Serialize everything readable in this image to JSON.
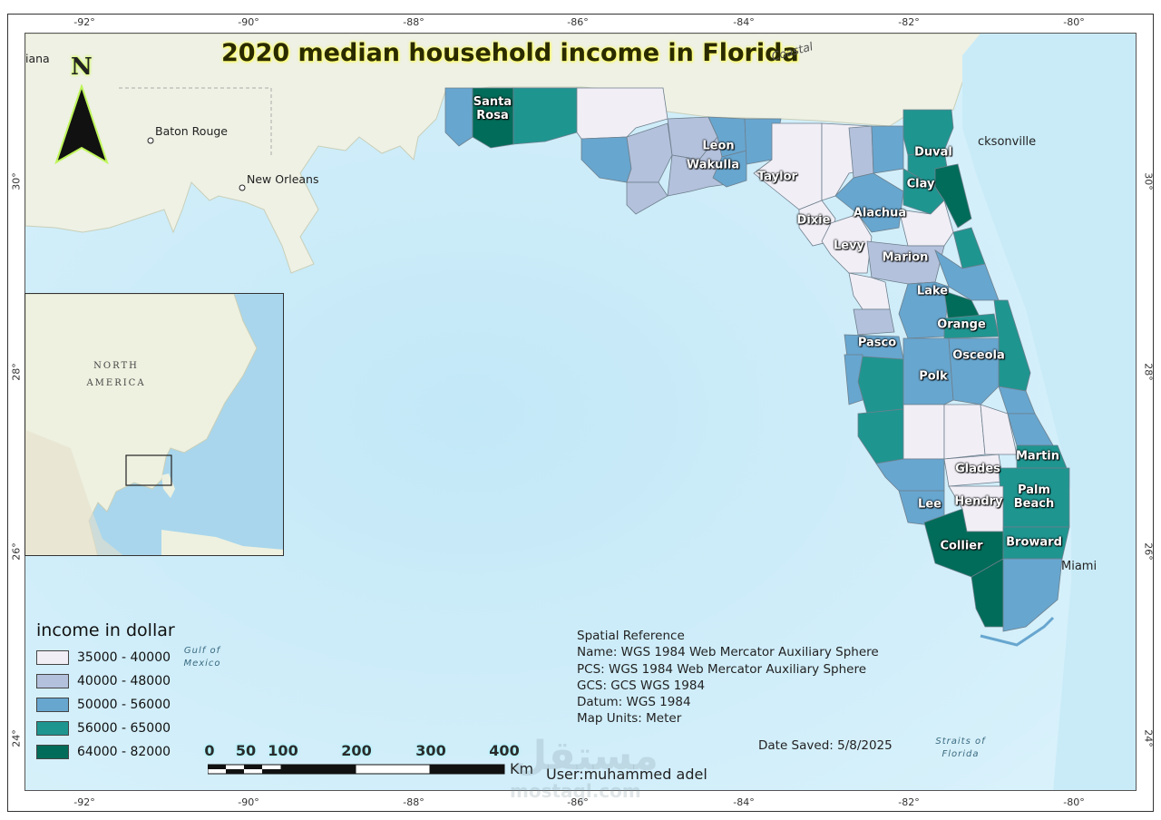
{
  "title": "2020 median household income in Florida",
  "ticks": {
    "top": [
      "-92°",
      "-90°",
      "-88°",
      "-86°",
      "-84°",
      "-82°",
      "-80°"
    ],
    "bottom": [
      "-92°",
      "-90°",
      "-88°",
      "-86°",
      "-84°",
      "-82°",
      "-80°"
    ],
    "left": [
      "30°",
      "28°",
      "26°",
      "24°"
    ],
    "right": [
      "30°",
      "28°",
      "26°",
      "24°"
    ]
  },
  "north_arrow": {
    "label": "N"
  },
  "places": {
    "baton_rouge": "Baton Rouge",
    "new_orleans": "New Orleans",
    "jacksonville": "cksonville",
    "miami": "Miami",
    "iana": "iana",
    "coastal": "Coastal"
  },
  "water_labels": {
    "gulf": "Gulf of Mexico",
    "straits": "Straits of Florida"
  },
  "inset": {
    "label_line1": "NORTH",
    "label_line2": "AMERICA"
  },
  "counties": {
    "santa_rosa": "Santa Rosa",
    "leon": "Leon",
    "wakulla": "Wakulla",
    "taylor": "Taylor",
    "dixie": "Dixie",
    "levy": "Levy",
    "alachua": "Alachua",
    "marion": "Marion",
    "duval": "Duval",
    "clay": "Clay",
    "lake": "Lake",
    "orange": "Orange",
    "pasco": "Pasco",
    "osceola": "Osceola",
    "polk": "Polk",
    "martin": "Martin",
    "palm_beach": "Palm Beach",
    "glades": "Glades",
    "hendry": "Hendry",
    "lee": "Lee",
    "collier": "Collier",
    "broward": "Broward"
  },
  "legend": {
    "title": "income in dollar",
    "classes": [
      {
        "label": "35000 - 40000",
        "color": "#f1eef6"
      },
      {
        "label": "40000 - 48000",
        "color": "#b3c1dc"
      },
      {
        "label": "50000 - 56000",
        "color": "#67a6cf"
      },
      {
        "label": "56000 - 65000",
        "color": "#1f9590"
      },
      {
        "label": "64000 - 82000",
        "color": "#016c59"
      }
    ]
  },
  "scale_bar": {
    "labels": [
      "0",
      "50",
      "100",
      "200",
      "300",
      "400"
    ],
    "unit": "Km"
  },
  "spatial_reference": {
    "heading": "Spatial Reference",
    "name": "Name: WGS 1984 Web Mercator Auxiliary Sphere",
    "pcs": "PCS: WGS 1984 Web Mercator Auxiliary Sphere",
    "gcs": "GCS: GCS WGS 1984",
    "datum": "Datum: WGS 1984",
    "units": "Map Units: Meter"
  },
  "date_saved": "Date Saved: 5/8/2025",
  "user": "User:muhammed adel",
  "watermark": {
    "arabic": "مستقل",
    "latin": "mostaql.com"
  }
}
